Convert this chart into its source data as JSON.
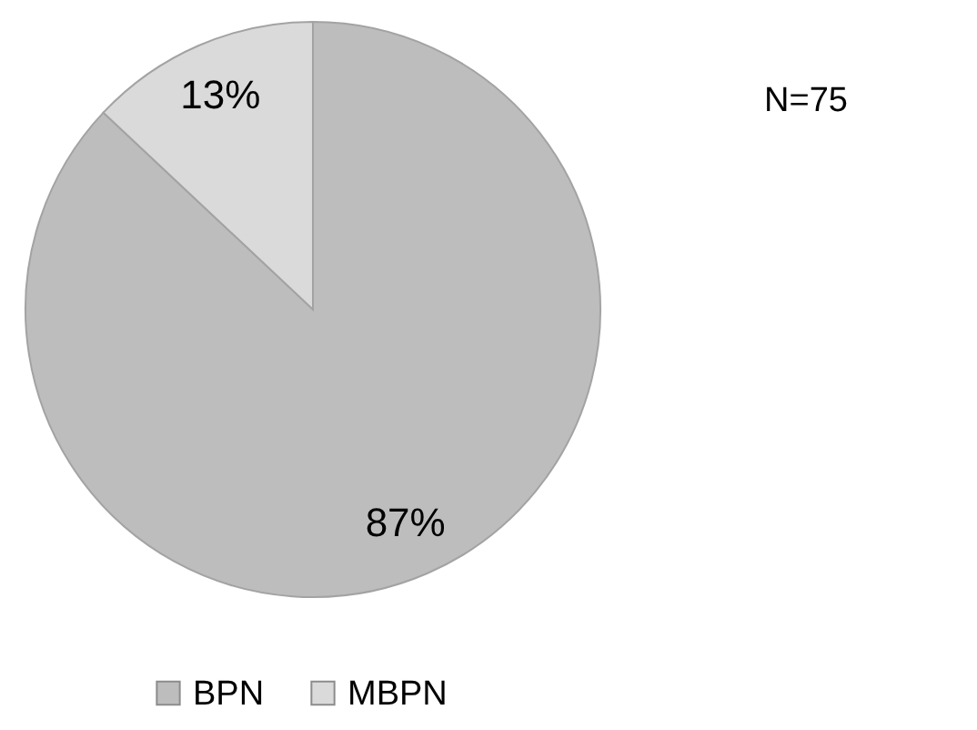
{
  "chart_data": {
    "type": "pie",
    "categories": [
      "BPN",
      "MBPN"
    ],
    "values": [
      87,
      13
    ],
    "colors": [
      "#bdbdbd",
      "#dadada"
    ],
    "value_labels": [
      "87%",
      "13%"
    ],
    "annotations": [
      "N=75"
    ],
    "legend": "bottom"
  }
}
